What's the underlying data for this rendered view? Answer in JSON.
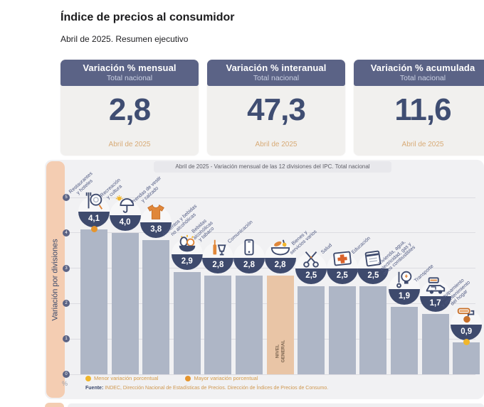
{
  "page": {
    "title": "Índice de precios al consumidor",
    "subtitle": "Abril de 2025. Resumen ejecutivo"
  },
  "kpi_cards": [
    {
      "title": "Variación % mensual",
      "scope": "Total nacional",
      "value": "2,8",
      "period": "Abril de 2025"
    },
    {
      "title": "Variación % interanual",
      "scope": "Total nacional",
      "value": "47,3",
      "period": "Abril de 2025"
    },
    {
      "title": "Variación % acumulada",
      "scope": "Total nacional",
      "value": "11,6",
      "period": "Abril de 2025"
    }
  ],
  "chart_data": {
    "type": "bar",
    "title": "Abril de 2025 - Variación mensual de las 12 divisiones del IPC. Total nacional",
    "ylabel": "Variación por divisiones",
    "unit": "%",
    "ylim": [
      0,
      5
    ],
    "grid": true,
    "legend_position": "bottom",
    "categories": [
      "Restaurantes y hoteles",
      "Recreación y cultura",
      "Prendas de vestir y calzado",
      "Alimentos y bebidas no alcohólicas",
      "Bebidas alcohólicas y tabaco",
      "Comunicación",
      "Nivel general",
      "Bienes y servicios varios",
      "Salud",
      "Educación",
      "Vivienda, agua, electricidad, gas y otros combustibles",
      "Transporte",
      "Equipamiento y mantenimiento del hogar"
    ],
    "values": [
      4.1,
      4.0,
      3.8,
      2.9,
      2.8,
      2.8,
      2.8,
      2.5,
      2.5,
      2.5,
      1.9,
      1.7,
      0.9
    ],
    "bar_details": [
      {
        "label_lines": [
          "Restaurantes",
          "y hoteles"
        ],
        "display": "4,1",
        "icon": "restaurant-icon",
        "marker": "max",
        "highlight": false,
        "vertical_label": false
      },
      {
        "label_lines": [
          "Recreación",
          "y cultura"
        ],
        "display": "4,0",
        "icon": "recreation-icon",
        "marker": null,
        "highlight": false,
        "vertical_label": false
      },
      {
        "label_lines": [
          "Prendas de vestir",
          "y calzado"
        ],
        "display": "3,8",
        "icon": "clothing-icon",
        "marker": null,
        "highlight": false,
        "vertical_label": false
      },
      {
        "label_lines": [
          "Alimentos y bebidas",
          "no alcohólicas"
        ],
        "display": "2,9",
        "icon": "food-icon",
        "marker": null,
        "highlight": false,
        "vertical_label": false
      },
      {
        "label_lines": [
          "Bebidas",
          "alcohólicas",
          "y tabaco"
        ],
        "display": "2,8",
        "icon": "alcohol-icon",
        "marker": null,
        "highlight": false,
        "vertical_label": false
      },
      {
        "label_lines": [
          "Comunicación"
        ],
        "display": "2,8",
        "icon": "phone-icon",
        "marker": null,
        "highlight": false,
        "vertical_label": false
      },
      {
        "label_lines": [
          "NIVEL",
          "GENERAL"
        ],
        "display": "2,8",
        "icon": "basket-icon",
        "marker": null,
        "highlight": true,
        "vertical_label": true
      },
      {
        "label_lines": [
          "Bienes y",
          "servicios varios"
        ],
        "display": "2,5",
        "icon": "scissors-icon",
        "marker": null,
        "highlight": false,
        "vertical_label": false
      },
      {
        "label_lines": [
          "Salud"
        ],
        "display": "2,5",
        "icon": "health-cross-icon",
        "marker": null,
        "highlight": false,
        "vertical_label": false
      },
      {
        "label_lines": [
          "Educación"
        ],
        "display": "2,5",
        "icon": "book-icon",
        "marker": null,
        "highlight": false,
        "vertical_label": false
      },
      {
        "label_lines": [
          "Vivienda, agua,",
          "electricidad, gas y",
          "otros combustibles"
        ],
        "display": "1,9",
        "icon": "bulb-icon",
        "marker": null,
        "highlight": false,
        "vertical_label": false
      },
      {
        "label_lines": [
          "Transporte"
        ],
        "display": "1,7",
        "icon": "car-icon",
        "marker": null,
        "highlight": false,
        "vertical_label": false
      },
      {
        "label_lines": [
          "Equipamiento",
          "y mantenimiento",
          "del hogar"
        ],
        "display": "0,9",
        "icon": "roller-icon",
        "marker": "min",
        "highlight": false,
        "vertical_label": false
      }
    ],
    "highlight_category": "Nivel general",
    "legend": [
      {
        "label": "Menor variación porcentual",
        "color": "#f0b62b"
      },
      {
        "label": "Mayor variación porcentual",
        "color": "#e6952d"
      }
    ],
    "source_label": "Fuente:",
    "source_text": "INDEC, Dirección Nacional de Estadísticas de Precios. Dirección de Índices de Precios de Consumo.",
    "colors": {
      "bar": "#aeb6c6",
      "bar_highlight": "#e9c5a6",
      "badge": "#3e4a6d",
      "card_header": "#5b6386",
      "value_text": "#3f4d72",
      "period_text": "#d8ab77",
      "band": "#f4cdb2",
      "panel": "#f1f1f3"
    }
  }
}
